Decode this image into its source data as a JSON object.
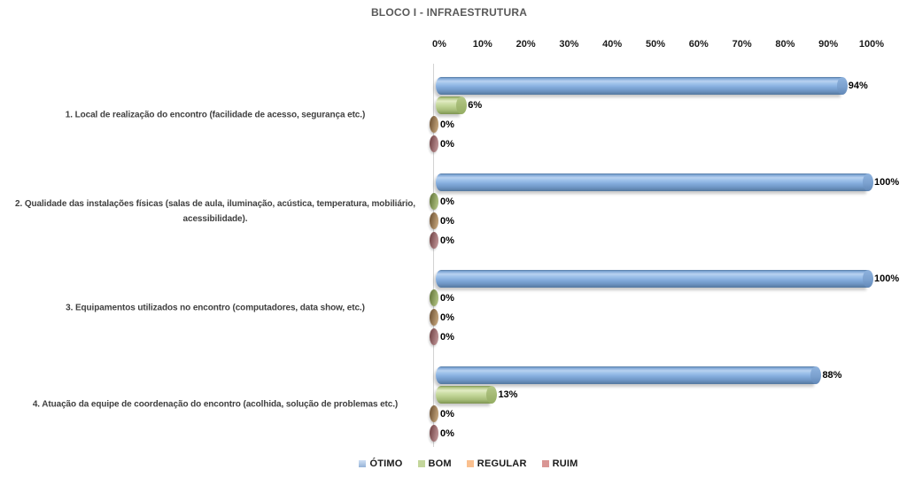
{
  "title": "BLOCO I - INFRAESTRUTURA",
  "chart_data": {
    "type": "bar",
    "orientation": "horizontal",
    "bar_style": "3d-cylinder",
    "title": "BLOCO I - INFRAESTRUTURA",
    "xlabel": "",
    "ylabel": "",
    "xlim": [
      0,
      100
    ],
    "x_ticks": [
      "0%",
      "10%",
      "20%",
      "30%",
      "40%",
      "50%",
      "60%",
      "70%",
      "80%",
      "90%",
      "100%"
    ],
    "grid": false,
    "legend_position": "bottom",
    "categories": [
      "1. Local de realização do encontro (facilidade de acesso, segurança etc.)",
      "2. Qualidade das instalações físicas (salas de aula, iluminação, acústica, temperatura, mobiliário, acessibilidade).",
      "3. Equipamentos utilizados no encontro (computadores, data show, etc.)",
      "4. Atuação da equipe de coordenação do encontro (acolhida, solução de problemas etc.)"
    ],
    "series": [
      {
        "name": "ÓTIMO",
        "key": "otimo",
        "color": "#8eb4e3",
        "values": [
          94,
          100,
          100,
          88
        ]
      },
      {
        "name": "BOM",
        "key": "bom",
        "color": "#c3d69b",
        "values": [
          6,
          0,
          0,
          13
        ]
      },
      {
        "name": "REGULAR",
        "key": "regular",
        "color": "#fabf8f",
        "values": [
          0,
          0,
          0,
          0
        ]
      },
      {
        "name": "RUIM",
        "key": "ruim",
        "color": "#d99694",
        "values": [
          0,
          0,
          0,
          0
        ]
      }
    ],
    "value_labels": [
      [
        "94%",
        "6%",
        "0%",
        "0%"
      ],
      [
        "100%",
        "0%",
        "0%",
        "0%"
      ],
      [
        "100%",
        "0%",
        "0%",
        "0%"
      ],
      [
        "88%",
        "13%",
        "0%",
        "0%"
      ]
    ],
    "colors": {
      "title_text": "#595959",
      "axis_line": "#d3d3d3",
      "value_text": "#000000",
      "category_text": "#3f3f3f"
    }
  }
}
